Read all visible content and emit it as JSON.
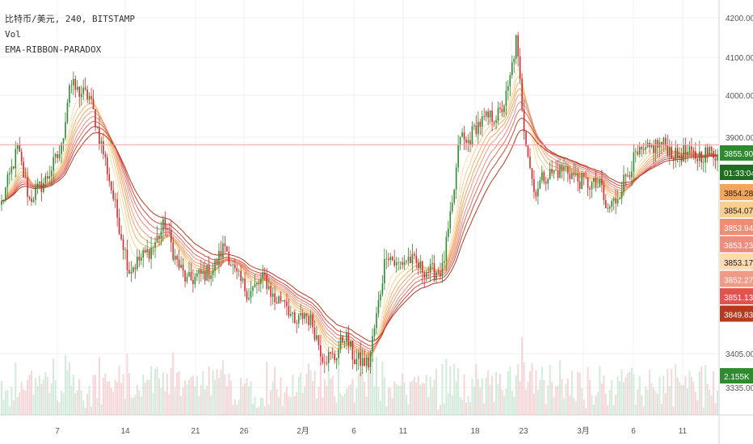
{
  "legend": {
    "symbol_line": "比特币/美元, 240, BITSTAMP",
    "vol_label": "Vol",
    "indicator_label": "EMA-RIBBON-PARADOX"
  },
  "chart_data": {
    "type": "candlestick",
    "title": "比特币/美元, 240, BITSTAMP",
    "price_axis": {
      "ticks": [
        4200,
        4100,
        4000,
        3900,
        3405,
        3335
      ],
      "tick_labels": [
        "4200.00",
        "4100.00",
        "4000.00",
        "3900.00",
        "3405.00",
        "3335.00"
      ]
    },
    "time_axis": {
      "tick_labels": [
        "7",
        "14",
        "21",
        "26",
        "2月",
        "6",
        "11",
        "18",
        "23",
        "3月",
        "6",
        "11"
      ]
    },
    "current_price": 3855.9,
    "current_price_label": "3855.90",
    "countdown_label": "01:33:04",
    "volume_label": "2.155K",
    "ribbon_labels": [
      {
        "label": "3854.28",
        "color": "#f3a65a"
      },
      {
        "label": "3854.07",
        "color": "#f8cf8e"
      },
      {
        "label": "3853.94",
        "color": "#f08c72"
      },
      {
        "label": "3853.23",
        "color": "#ee8c7c"
      },
      {
        "label": "3853.17",
        "color": "#fcdcae"
      },
      {
        "label": "3852.27",
        "color": "#f19a86"
      },
      {
        "label": "3851.13",
        "color": "#e3524f"
      },
      {
        "label": "3849.83",
        "color": "#b53a1f"
      }
    ],
    "path": [
      [
        0,
        3730
      ],
      [
        8,
        3870
      ],
      [
        14,
        3740
      ],
      [
        22,
        3790
      ],
      [
        30,
        3870
      ],
      [
        34,
        4040
      ],
      [
        38,
        4020
      ],
      [
        44,
        4005
      ],
      [
        52,
        3840
      ],
      [
        60,
        3650
      ],
      [
        64,
        3560
      ],
      [
        70,
        3590
      ],
      [
        76,
        3620
      ],
      [
        82,
        3680
      ],
      [
        87,
        3590
      ],
      [
        93,
        3530
      ],
      [
        99,
        3545
      ],
      [
        106,
        3560
      ],
      [
        112,
        3625
      ],
      [
        117,
        3550
      ],
      [
        124,
        3500
      ],
      [
        132,
        3540
      ],
      [
        137,
        3480
      ],
      [
        142,
        3490
      ],
      [
        147,
        3415
      ],
      [
        152,
        3450
      ],
      [
        156,
        3420
      ],
      [
        161,
        3340
      ],
      [
        167,
        3335
      ],
      [
        172,
        3395
      ],
      [
        177,
        3330
      ],
      [
        184,
        3320
      ],
      [
        188,
        3440
      ],
      [
        193,
        3610
      ],
      [
        198,
        3570
      ],
      [
        204,
        3590
      ],
      [
        210,
        3565
      ],
      [
        215,
        3555
      ],
      [
        221,
        3560
      ],
      [
        226,
        3720
      ],
      [
        230,
        3910
      ],
      [
        233,
        3880
      ],
      [
        238,
        3930
      ],
      [
        244,
        3950
      ],
      [
        250,
        3960
      ],
      [
        254,
        4020
      ],
      [
        258,
        4150
      ],
      [
        262,
        3930
      ],
      [
        267,
        3760
      ],
      [
        272,
        3800
      ],
      [
        277,
        3810
      ],
      [
        283,
        3820
      ],
      [
        289,
        3790
      ],
      [
        295,
        3780
      ],
      [
        301,
        3770
      ],
      [
        303,
        3710
      ],
      [
        308,
        3740
      ],
      [
        313,
        3800
      ],
      [
        318,
        3850
      ],
      [
        323,
        3860
      ],
      [
        328,
        3880
      ],
      [
        333,
        3880
      ],
      [
        338,
        3850
      ],
      [
        342,
        3860
      ],
      [
        348,
        3850
      ],
      [
        354,
        3860
      ],
      [
        359,
        3855
      ]
    ],
    "colors": {
      "up": "#53b987",
      "down": "#eb4d5c",
      "up_deep": "#2e8b2e",
      "down_deep": "#d9292b",
      "price_line": "#f2a0a0"
    },
    "grid": true
  }
}
